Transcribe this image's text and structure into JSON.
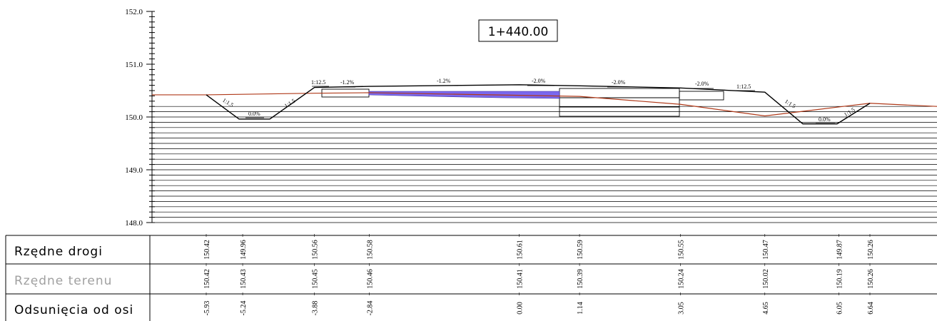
{
  "station_label": "1+440.00",
  "elevation_axis": {
    "min": 148.0,
    "max": 152.0,
    "tick_labels": [
      "152.0",
      "151.0",
      "150.0",
      "149.0",
      "148.0"
    ],
    "tick_values": [
      152.0,
      151.0,
      150.0,
      149.0,
      148.0
    ]
  },
  "offset_axis": {
    "min": -5.93,
    "max": 6.64
  },
  "road_profile": [
    [
      -5.93,
      150.42
    ],
    [
      -5.24,
      149.96
    ],
    [
      -3.88,
      150.56
    ],
    [
      -2.84,
      150.58
    ],
    [
      0.0,
      150.61
    ],
    [
      1.14,
      150.59
    ],
    [
      3.05,
      150.55
    ],
    [
      4.65,
      150.47
    ],
    [
      6.05,
      149.87
    ],
    [
      6.64,
      150.26
    ]
  ],
  "terrain_profile": [
    [
      -5.93,
      150.42
    ],
    [
      -5.24,
      150.43
    ],
    [
      -3.88,
      150.45
    ],
    [
      -2.84,
      150.46
    ],
    [
      0.0,
      150.41
    ],
    [
      1.14,
      150.39
    ],
    [
      3.05,
      150.24
    ],
    [
      4.65,
      150.02
    ],
    [
      6.05,
      150.19
    ],
    [
      6.64,
      150.26
    ]
  ],
  "slope_labels": {
    "left_bank_outer": "1:1.5",
    "left_ditch_bottom": "0.0%",
    "left_bank_inner": "1:1.5",
    "left_shoulder": "1:12.5",
    "left_pavement_edge": "-1.2%",
    "left_pavement": "-1.2%",
    "right_pavement_1": "-2.0%",
    "right_pavement_2": "-2.0%",
    "right_pavement_3": "-2.0%",
    "right_shoulder": "1:12.5",
    "right_bank_inner": "1:1.5",
    "right_ditch_bottom": "0.0%",
    "right_bank_outer": "1:1.5"
  },
  "table": {
    "rows": [
      {
        "label": "Rzędne drogi",
        "values": [
          "150.42",
          "149.96",
          "150.56",
          "150.58",
          "150.61",
          "150.59",
          "150.55",
          "150.47",
          "149.87",
          "150.26"
        ]
      },
      {
        "label": "Rzędne terenu",
        "values": [
          "150.42",
          "150.43",
          "150.45",
          "150.46",
          "150.41",
          "150.39",
          "150.24",
          "150.02",
          "150.19",
          "150.26"
        ]
      },
      {
        "label": "Odsunięcia od osi",
        "values": [
          "-5.93",
          "-5.24",
          "-3.88",
          "-2.84",
          "0.00",
          "1.14",
          "3.05",
          "4.65",
          "6.05",
          "6.64"
        ]
      }
    ]
  },
  "colors": {
    "road_line": "#000000",
    "terrain_line": "#b03a1a",
    "fill_area": "#7b68ee",
    "grid_line": "#000000",
    "faint_label": "#a0a0a0"
  }
}
